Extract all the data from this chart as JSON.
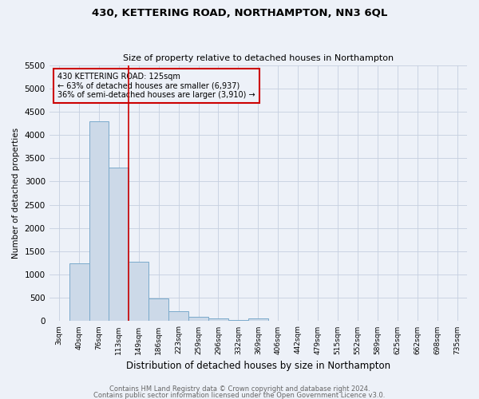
{
  "title": "430, KETTERING ROAD, NORTHAMPTON, NN3 6QL",
  "subtitle": "Size of property relative to detached houses in Northampton",
  "xlabel": "Distribution of detached houses by size in Northampton",
  "ylabel": "Number of detached properties",
  "footer1": "Contains HM Land Registry data © Crown copyright and database right 2024.",
  "footer2": "Contains public sector information licensed under the Open Government Licence v3.0.",
  "bin_labels": [
    "3sqm",
    "40sqm",
    "76sqm",
    "113sqm",
    "149sqm",
    "186sqm",
    "223sqm",
    "259sqm",
    "296sqm",
    "332sqm",
    "369sqm",
    "406sqm",
    "442sqm",
    "479sqm",
    "515sqm",
    "552sqm",
    "589sqm",
    "625sqm",
    "662sqm",
    "698sqm",
    "735sqm"
  ],
  "bar_values": [
    0,
    1250,
    4300,
    3300,
    1270,
    480,
    210,
    90,
    55,
    30,
    60,
    0,
    0,
    0,
    0,
    0,
    0,
    0,
    0,
    0,
    0
  ],
  "bar_color": "#ccd9e8",
  "bar_edge_color": "#7aaacb",
  "bar_edge_width": 0.7,
  "grid_color": "#c5cfe0",
  "background_color": "#edf1f8",
  "red_line_x": 3.5,
  "red_line_color": "#cc0000",
  "annotation_text": "430 KETTERING ROAD: 125sqm\n← 63% of detached houses are smaller (6,937)\n36% of semi-detached houses are larger (3,910) →",
  "annotation_box_edge": "#cc0000",
  "ylim": [
    0,
    5500
  ],
  "yticks": [
    0,
    500,
    1000,
    1500,
    2000,
    2500,
    3000,
    3500,
    4000,
    4500,
    5000,
    5500
  ]
}
